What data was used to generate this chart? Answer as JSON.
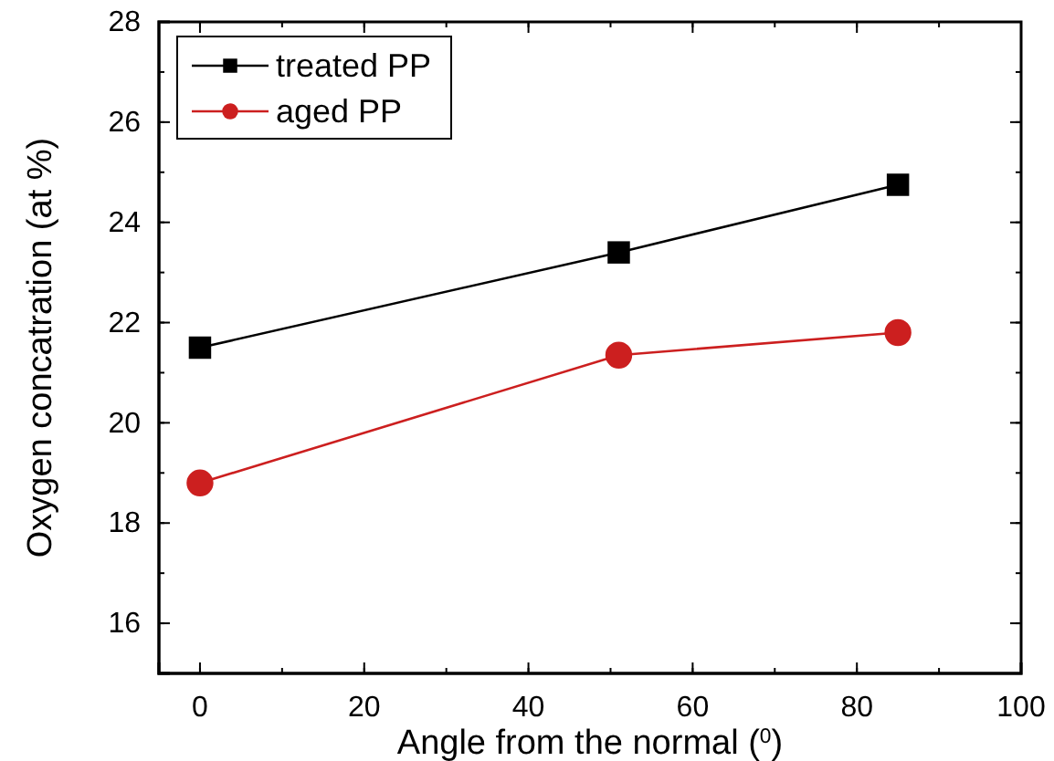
{
  "chart_data": {
    "type": "line",
    "xlabel": "Angle from the normal ($^{0}$)",
    "ylabel": "Oxygen concatration (at %)",
    "x": [
      0,
      51,
      85
    ],
    "series": [
      {
        "name": "treated PP",
        "color": "#000000",
        "marker": "square",
        "values": [
          21.5,
          23.4,
          24.75
        ]
      },
      {
        "name": "aged PP",
        "color": "#cc1f1f",
        "marker": "circle",
        "values": [
          18.8,
          21.35,
          21.8
        ]
      }
    ],
    "xlim": [
      -5,
      100
    ],
    "xticks": [
      0,
      20,
      40,
      60,
      80,
      100
    ],
    "ylim": [
      15,
      28
    ],
    "yticks": [
      16,
      18,
      20,
      22,
      24,
      26,
      28
    ],
    "grid": false,
    "legend": "top left",
    "line_style": "solid"
  }
}
